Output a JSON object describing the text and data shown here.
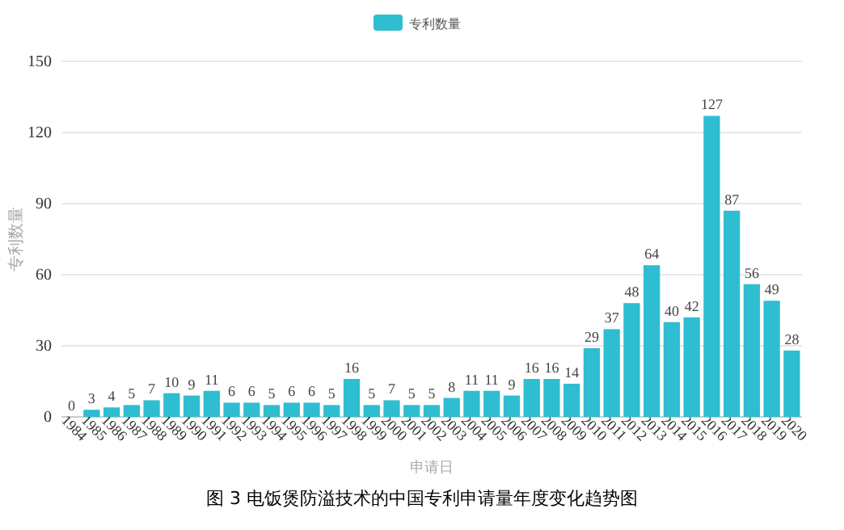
{
  "chart_data": {
    "type": "bar",
    "xlabel": "申请日",
    "ylabel": "专利数量",
    "categories": [
      "1984",
      "1985",
      "1986",
      "1987",
      "1988",
      "1989",
      "1990",
      "1991",
      "1992",
      "1993",
      "1994",
      "1995",
      "1996",
      "1997",
      "1998",
      "1999",
      "2000",
      "2001",
      "2002",
      "2003",
      "2004",
      "2005",
      "2006",
      "2007",
      "2008",
      "2009",
      "2010",
      "2011",
      "2012",
      "2013",
      "2014",
      "2015",
      "2016",
      "2017",
      "2018",
      "2019",
      "2020"
    ],
    "series": [
      {
        "name": "专利数量",
        "color": "#2ebdd1",
        "values": [
          0,
          3,
          4,
          5,
          7,
          10,
          9,
          11,
          6,
          6,
          5,
          6,
          6,
          5,
          16,
          5,
          7,
          5,
          5,
          8,
          11,
          11,
          9,
          16,
          16,
          14,
          29,
          37,
          48,
          64,
          40,
          42,
          127,
          87,
          56,
          49,
          28
        ]
      }
    ],
    "ylim": [
      0,
      150
    ],
    "yticks": [
      0,
      30,
      60,
      90,
      120,
      150
    ],
    "grid": "y",
    "legend": "top",
    "data_labels": true,
    "annotations": [
      "图 3 电饭煲防溢技术的中国专利申请量年度变化趋势图"
    ]
  }
}
